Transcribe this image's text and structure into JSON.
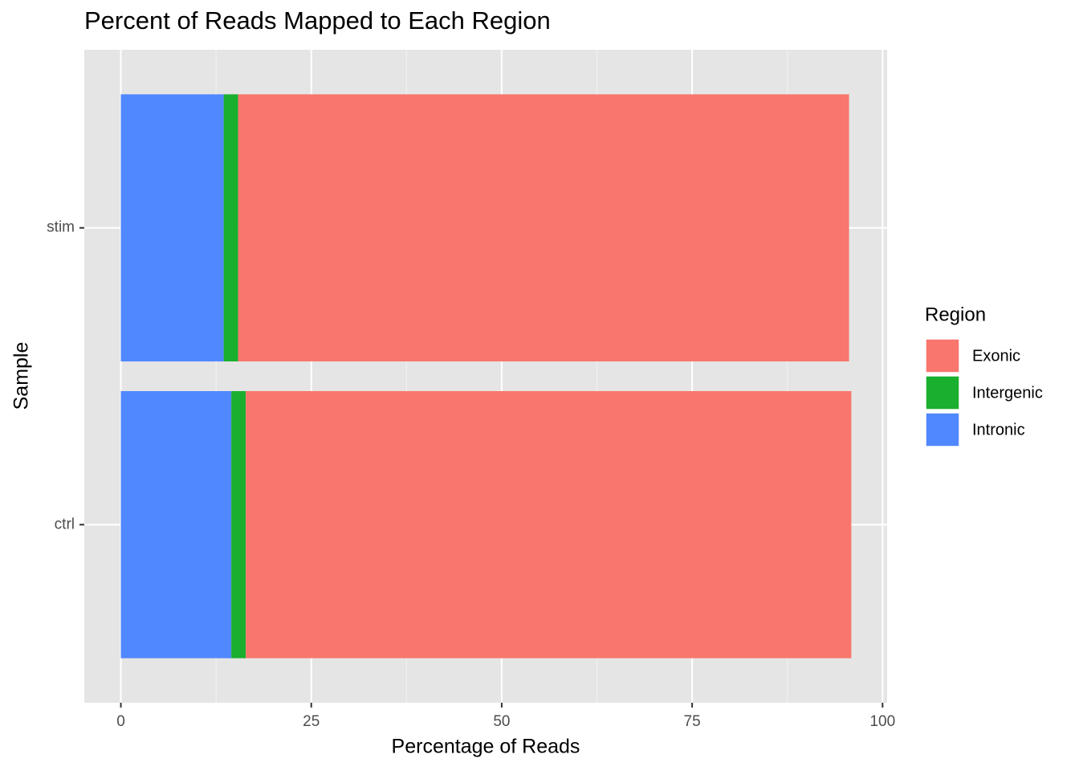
{
  "chart_data": {
    "type": "stacked_barh",
    "title": "Percent of Reads Mapped to Each Region",
    "x_label": "Percentage of Reads",
    "y_label": "Sample",
    "legend_title": "Region",
    "categories": [
      "ctrl",
      "stim"
    ],
    "series": [
      {
        "name": "Exonic",
        "color": "#F8766D",
        "values": [
          79.5,
          80.2
        ]
      },
      {
        "name": "Intergenic",
        "color": "#1AAF2F",
        "values": [
          1.9,
          1.9
        ]
      },
      {
        "name": "Intronic",
        "color": "#5088FF",
        "values": [
          14.5,
          13.5
        ]
      }
    ],
    "xlim": [
      -4.8,
      100.6
    ],
    "xticks": [
      0,
      25,
      50,
      75,
      100
    ],
    "grid": true,
    "legend_position": "right"
  }
}
